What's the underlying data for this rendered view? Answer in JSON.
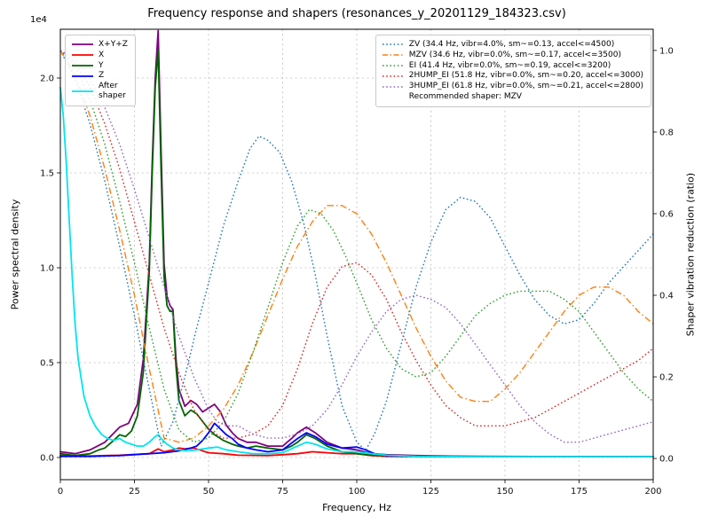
{
  "chart_data": {
    "type": "line",
    "title": "Frequency response and shapers (resonances_y_20201129_184323.csv)",
    "recommended_note": "Recommended shaper: MZV",
    "axes": {
      "x": {
        "label": "Frequency, Hz",
        "min": 0,
        "max": 200,
        "ticks": [
          0,
          25,
          50,
          75,
          100,
          125,
          150,
          175,
          200
        ],
        "tick_labels": [
          "0",
          "25",
          "50",
          "75",
          "100",
          "125",
          "150",
          "175",
          "200"
        ]
      },
      "y_left": {
        "label": "Power spectral density",
        "offset_text": "1e4",
        "units": "1e4",
        "min": -0.117,
        "max": 2.257,
        "ticks": [
          0,
          0.5,
          1.0,
          1.5,
          2.0
        ],
        "tick_labels": [
          "0.0",
          "0.5",
          "1.0",
          "1.5",
          "2.0"
        ]
      },
      "y_right": {
        "label": "Shaper vibration reduction (ratio)",
        "min": -0.052,
        "max": 1.052,
        "ticks": [
          0,
          0.2,
          0.4,
          0.6,
          0.8,
          1.0
        ],
        "tick_labels": [
          "0.0",
          "0.2",
          "0.4",
          "0.6",
          "0.8",
          "1.0"
        ]
      }
    },
    "psd_series": [
      {
        "key": "sum",
        "label": "X+Y+Z",
        "color": "#7f007f",
        "style": "solid",
        "axis": "left",
        "x": [
          0,
          5,
          10,
          15,
          20,
          23,
          26,
          28,
          30,
          31,
          32,
          33,
          34,
          35,
          36,
          37,
          38,
          39,
          40,
          42,
          44,
          46,
          48,
          50,
          52,
          54,
          56,
          58,
          60,
          63,
          66,
          70,
          75,
          78,
          80,
          83,
          86,
          90,
          95,
          100,
          105,
          110,
          120,
          130,
          140,
          160,
          180,
          200
        ],
        "y": [
          0.03,
          0.02,
          0.04,
          0.08,
          0.16,
          0.18,
          0.28,
          0.52,
          1.02,
          1.55,
          2.0,
          2.25,
          1.6,
          1.02,
          0.85,
          0.8,
          0.78,
          0.52,
          0.36,
          0.27,
          0.3,
          0.28,
          0.24,
          0.26,
          0.28,
          0.24,
          0.17,
          0.13,
          0.1,
          0.08,
          0.08,
          0.06,
          0.06,
          0.1,
          0.13,
          0.16,
          0.13,
          0.08,
          0.05,
          0.04,
          0.02,
          0.015,
          0.01,
          0.008,
          0.006,
          0.005,
          0.005,
          0.005
        ]
      },
      {
        "key": "x",
        "label": "X",
        "color": "#ff0000",
        "style": "solid",
        "axis": "left",
        "x": [
          0,
          10,
          20,
          30,
          33,
          35,
          38,
          40,
          42,
          45,
          48,
          50,
          55,
          60,
          70,
          75,
          80,
          85,
          90,
          95,
          100,
          105,
          110,
          120,
          140,
          160,
          180,
          200
        ],
        "y": [
          0.01,
          0.008,
          0.012,
          0.02,
          0.045,
          0.03,
          0.04,
          0.05,
          0.045,
          0.05,
          0.035,
          0.025,
          0.02,
          0.012,
          0.01,
          0.015,
          0.02,
          0.03,
          0.025,
          0.02,
          0.02,
          0.01,
          0.006,
          0.005,
          0.004,
          0.004,
          0.004,
          0.004
        ]
      },
      {
        "key": "y",
        "label": "Y",
        "color": "#006400",
        "style": "solid",
        "axis": "left",
        "x": [
          0,
          5,
          10,
          13,
          15,
          18,
          20,
          22,
          24,
          26,
          28,
          30,
          31,
          32,
          33,
          34,
          35,
          36,
          37,
          38,
          39,
          40,
          42,
          44,
          46,
          48,
          50,
          52,
          55,
          58,
          60,
          63,
          66,
          70,
          75,
          78,
          80,
          83,
          86,
          90,
          95,
          100,
          105,
          110,
          120,
          130,
          140,
          160,
          180,
          200
        ],
        "y": [
          0.02,
          0.01,
          0.02,
          0.04,
          0.05,
          0.09,
          0.12,
          0.11,
          0.14,
          0.22,
          0.45,
          0.98,
          1.5,
          1.95,
          2.15,
          1.5,
          0.95,
          0.8,
          0.77,
          0.77,
          0.48,
          0.3,
          0.22,
          0.25,
          0.23,
          0.19,
          0.15,
          0.12,
          0.09,
          0.07,
          0.06,
          0.05,
          0.06,
          0.05,
          0.04,
          0.06,
          0.08,
          0.12,
          0.1,
          0.06,
          0.03,
          0.02,
          0.012,
          0.01,
          0.008,
          0.006,
          0.005,
          0.005,
          0.005,
          0.005
        ]
      },
      {
        "key": "z",
        "label": "Z",
        "color": "#0000ff",
        "style": "solid",
        "axis": "left",
        "x": [
          0,
          10,
          20,
          30,
          35,
          40,
          44,
          46,
          48,
          50,
          52,
          54,
          56,
          58,
          60,
          63,
          66,
          70,
          75,
          80,
          83,
          86,
          90,
          95,
          100,
          103,
          106,
          110,
          120,
          140,
          160,
          180,
          200
        ],
        "y": [
          0.006,
          0.006,
          0.01,
          0.02,
          0.025,
          0.035,
          0.05,
          0.06,
          0.09,
          0.13,
          0.18,
          0.15,
          0.12,
          0.1,
          0.07,
          0.05,
          0.04,
          0.03,
          0.04,
          0.1,
          0.13,
          0.11,
          0.07,
          0.05,
          0.055,
          0.04,
          0.02,
          0.01,
          0.006,
          0.004,
          0.004,
          0.004,
          0.004
        ]
      },
      {
        "key": "after",
        "label": "After\nshaper",
        "color": "#00e5ee",
        "style": "solid",
        "axis": "left",
        "x": [
          0,
          1,
          2,
          3,
          4,
          5,
          6,
          8,
          10,
          12,
          14,
          16,
          18,
          20,
          22,
          24,
          26,
          28,
          30,
          32,
          33,
          34,
          36,
          38,
          40,
          43,
          46,
          50,
          53,
          56,
          60,
          65,
          70,
          75,
          80,
          83,
          86,
          90,
          95,
          100,
          105,
          110,
          120,
          140,
          160,
          180,
          200
        ],
        "y": [
          1.95,
          1.8,
          1.55,
          1.25,
          0.95,
          0.7,
          0.52,
          0.32,
          0.22,
          0.16,
          0.12,
          0.1,
          0.09,
          0.1,
          0.08,
          0.07,
          0.06,
          0.06,
          0.08,
          0.11,
          0.12,
          0.1,
          0.07,
          0.05,
          0.04,
          0.035,
          0.04,
          0.05,
          0.055,
          0.04,
          0.03,
          0.02,
          0.02,
          0.025,
          0.06,
          0.08,
          0.07,
          0.045,
          0.03,
          0.03,
          0.02,
          0.012,
          0.006,
          0.004,
          0.004,
          0.004,
          0.004
        ]
      }
    ],
    "shaper_series": [
      {
        "key": "zv",
        "label": "ZV (34.4 Hz, vibr=4.0%, sm~=0.13, accel<=4500)",
        "color": "#1f77b4",
        "style": "dotted",
        "axis": "right",
        "x": [
          0,
          5,
          10,
          15,
          20,
          25,
          30,
          34,
          38,
          42,
          46,
          50,
          55,
          60,
          64,
          67,
          70,
          74,
          78,
          82,
          86,
          90,
          95,
          100,
          103,
          106,
          110,
          115,
          120,
          125,
          130,
          135,
          140,
          145,
          150,
          155,
          160,
          165,
          170,
          175,
          180,
          185,
          190,
          195,
          200
        ],
        "y": [
          1.0,
          0.93,
          0.82,
          0.68,
          0.52,
          0.35,
          0.17,
          0.03,
          0.09,
          0.2,
          0.32,
          0.43,
          0.57,
          0.68,
          0.76,
          0.79,
          0.78,
          0.75,
          0.68,
          0.58,
          0.45,
          0.3,
          0.13,
          0.04,
          0.02,
          0.06,
          0.14,
          0.28,
          0.42,
          0.53,
          0.61,
          0.64,
          0.63,
          0.59,
          0.52,
          0.45,
          0.39,
          0.35,
          0.33,
          0.34,
          0.38,
          0.43,
          0.47,
          0.51,
          0.55
        ]
      },
      {
        "key": "mzv",
        "label": "MZV (34.6 Hz, vibr=0.0%, sm~=0.17, accel<=3500)",
        "color": "#ff7f0e",
        "style": "dashdot",
        "axis": "right",
        "x": [
          0,
          5,
          10,
          15,
          20,
          25,
          30,
          35,
          40,
          45,
          50,
          55,
          60,
          65,
          70,
          75,
          80,
          85,
          90,
          95,
          100,
          105,
          110,
          115,
          120,
          125,
          130,
          135,
          140,
          145,
          150,
          155,
          160,
          165,
          170,
          175,
          180,
          185,
          190,
          195,
          200
        ],
        "y": [
          1.0,
          0.94,
          0.84,
          0.71,
          0.56,
          0.4,
          0.22,
          0.05,
          0.04,
          0.05,
          0.08,
          0.12,
          0.18,
          0.26,
          0.35,
          0.44,
          0.52,
          0.58,
          0.62,
          0.62,
          0.6,
          0.55,
          0.48,
          0.4,
          0.32,
          0.25,
          0.19,
          0.15,
          0.14,
          0.14,
          0.17,
          0.21,
          0.26,
          0.31,
          0.36,
          0.4,
          0.42,
          0.42,
          0.4,
          0.36,
          0.33
        ]
      },
      {
        "key": "ei",
        "label": "EI (41.4 Hz, vibr=0.0%, sm~=0.19, accel<=3200)",
        "color": "#2ca02c",
        "style": "dotted",
        "axis": "right",
        "x": [
          0,
          5,
          10,
          15,
          20,
          25,
          30,
          35,
          40,
          45,
          50,
          55,
          60,
          65,
          70,
          75,
          80,
          84,
          88,
          92,
          96,
          100,
          105,
          110,
          115,
          120,
          125,
          130,
          135,
          140,
          145,
          150,
          155,
          160,
          165,
          170,
          175,
          180,
          185,
          190,
          195,
          200
        ],
        "y": [
          1.0,
          0.96,
          0.88,
          0.77,
          0.63,
          0.48,
          0.32,
          0.17,
          0.07,
          0.04,
          0.05,
          0.09,
          0.16,
          0.26,
          0.37,
          0.48,
          0.57,
          0.61,
          0.6,
          0.56,
          0.5,
          0.43,
          0.34,
          0.27,
          0.22,
          0.2,
          0.21,
          0.25,
          0.3,
          0.35,
          0.38,
          0.4,
          0.41,
          0.41,
          0.41,
          0.39,
          0.36,
          0.31,
          0.26,
          0.21,
          0.17,
          0.14
        ]
      },
      {
        "key": "2hump_ei",
        "label": "2HUMP_EI (51.8 Hz, vibr=0.0%, sm~=0.20, accel<=3000)",
        "color": "#d62728",
        "style": "dotted",
        "axis": "right",
        "x": [
          0,
          5,
          10,
          15,
          20,
          25,
          30,
          35,
          40,
          45,
          50,
          55,
          60,
          65,
          70,
          75,
          80,
          85,
          90,
          95,
          100,
          105,
          110,
          115,
          120,
          125,
          130,
          135,
          140,
          145,
          150,
          155,
          160,
          165,
          170,
          175,
          180,
          185,
          190,
          195,
          200
        ],
        "y": [
          1.0,
          0.97,
          0.91,
          0.82,
          0.71,
          0.58,
          0.45,
          0.32,
          0.21,
          0.12,
          0.07,
          0.05,
          0.05,
          0.06,
          0.08,
          0.13,
          0.22,
          0.33,
          0.42,
          0.47,
          0.48,
          0.45,
          0.39,
          0.31,
          0.24,
          0.18,
          0.13,
          0.1,
          0.08,
          0.08,
          0.08,
          0.09,
          0.1,
          0.12,
          0.14,
          0.16,
          0.18,
          0.2,
          0.22,
          0.24,
          0.27
        ]
      },
      {
        "key": "3hump_ei",
        "label": "3HUMP_EI (61.8 Hz, vibr=0.0%, sm~=0.21, accel<=2800)",
        "color": "#9467bd",
        "style": "dotted",
        "axis": "right",
        "x": [
          0,
          5,
          10,
          15,
          20,
          25,
          30,
          35,
          40,
          45,
          50,
          53,
          56,
          60,
          65,
          70,
          75,
          80,
          85,
          90,
          95,
          100,
          105,
          110,
          115,
          120,
          125,
          130,
          135,
          140,
          145,
          150,
          155,
          160,
          165,
          170,
          175,
          180,
          185,
          190,
          195,
          200
        ],
        "y": [
          1.0,
          0.98,
          0.93,
          0.86,
          0.77,
          0.66,
          0.54,
          0.42,
          0.3,
          0.2,
          0.12,
          0.09,
          0.08,
          0.08,
          0.06,
          0.05,
          0.05,
          0.06,
          0.08,
          0.12,
          0.18,
          0.25,
          0.31,
          0.36,
          0.39,
          0.4,
          0.39,
          0.37,
          0.33,
          0.28,
          0.23,
          0.18,
          0.13,
          0.09,
          0.06,
          0.04,
          0.04,
          0.05,
          0.06,
          0.07,
          0.08,
          0.09
        ]
      }
    ]
  }
}
